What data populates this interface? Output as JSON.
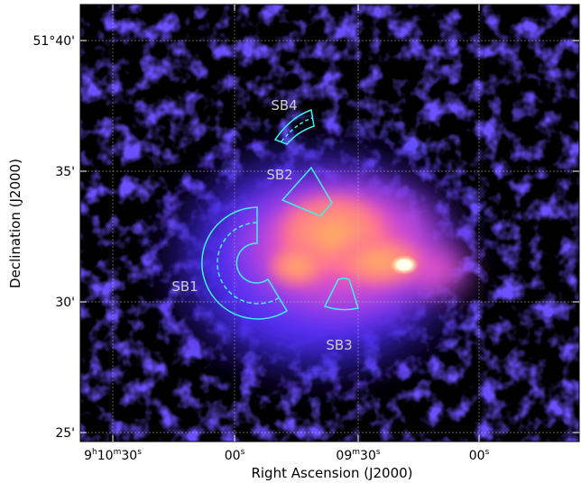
{
  "axes": {
    "x_label": "Right Ascension (J2000)",
    "y_label": "Declination (J2000)",
    "x_ticks": [
      [
        "9",
        "h",
        "10",
        "m",
        "30",
        "s"
      ],
      [
        "00",
        "s"
      ],
      [
        "09",
        "m",
        "30",
        "s"
      ],
      [
        "00",
        "s"
      ]
    ],
    "y_ticks": [
      "51°40'",
      "35'",
      "30'",
      "25'"
    ]
  },
  "regions": [
    "SB1",
    "SB2",
    "SB3",
    "SB4"
  ]
}
